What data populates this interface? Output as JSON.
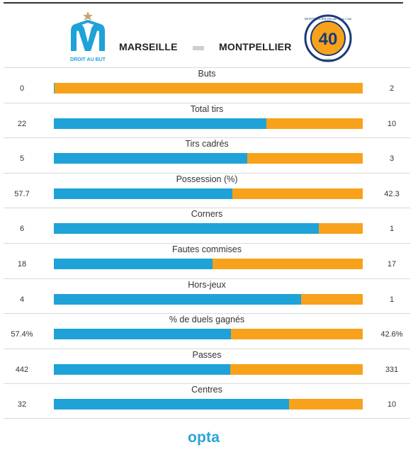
{
  "header": {
    "home_team": "MARSEILLE",
    "away_team": "MONTPELLIER",
    "home_logo_text": "DROIT AU BUT",
    "away_logo_text": "MONTPELLIER Hérault Sport Club",
    "away_logo_year": "1974",
    "away_logo_number": "40",
    "home_color": "#1ea2d8",
    "away_color": "#f7a21a"
  },
  "stats": [
    {
      "label": "Buts",
      "home": "0",
      "away": "2",
      "home_share": 0.003
    },
    {
      "label": "Total tirs",
      "home": "22",
      "away": "10",
      "home_share": 0.6875
    },
    {
      "label": "Tirs cadrés",
      "home": "5",
      "away": "3",
      "home_share": 0.625
    },
    {
      "label": "Possession (%)",
      "home": "57.7",
      "away": "42.3",
      "home_share": 0.577
    },
    {
      "label": "Corners",
      "home": "6",
      "away": "1",
      "home_share": 0.857
    },
    {
      "label": "Fautes commises",
      "home": "18",
      "away": "17",
      "home_share": 0.514
    },
    {
      "label": "Hors-jeux",
      "home": "4",
      "away": "1",
      "home_share": 0.8
    },
    {
      "label": "% de duels gagnés",
      "home": "57.4%",
      "away": "42.6%",
      "home_share": 0.574
    },
    {
      "label": "Passes",
      "home": "442",
      "away": "331",
      "home_share": 0.572
    },
    {
      "label": "Centres",
      "home": "32",
      "away": "10",
      "home_share": 0.762
    }
  ],
  "footer": {
    "brand": "opta"
  }
}
